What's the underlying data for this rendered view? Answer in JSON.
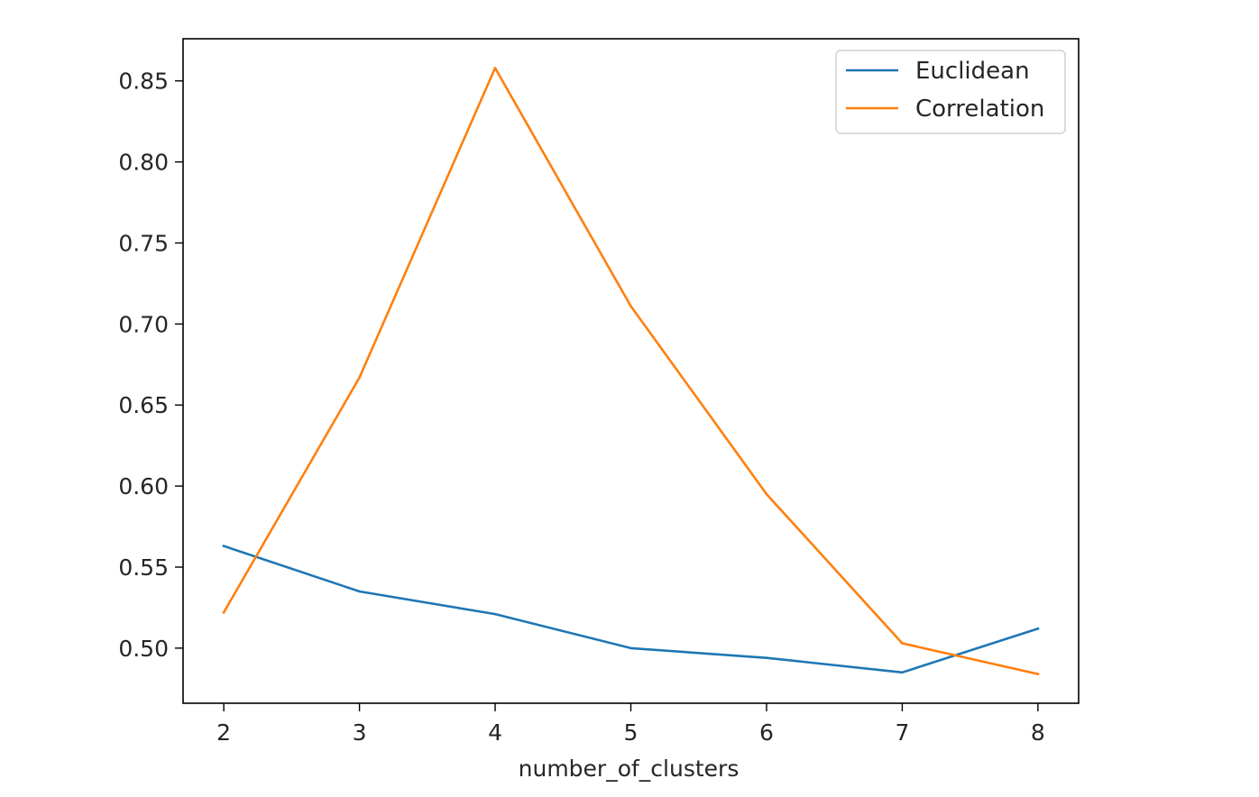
{
  "chart_data": {
    "type": "line",
    "title": "",
    "xlabel": "number_of_clusters",
    "ylabel": "",
    "x": [
      2,
      3,
      4,
      5,
      6,
      7,
      8
    ],
    "xticks": [
      "2",
      "3",
      "4",
      "5",
      "6",
      "7",
      "8"
    ],
    "yticks": [
      "0.50",
      "0.55",
      "0.60",
      "0.65",
      "0.70",
      "0.75",
      "0.80",
      "0.85"
    ],
    "ytick_values": [
      0.5,
      0.55,
      0.6,
      0.65,
      0.7,
      0.75,
      0.8,
      0.85
    ],
    "xlim": [
      1.7,
      8.3
    ],
    "ylim": [
      0.466,
      0.876
    ],
    "grid": false,
    "legend_position": "top-right",
    "series": [
      {
        "name": "Euclidean",
        "color": "#1f77b4",
        "values": [
          0.563,
          0.535,
          0.521,
          0.5,
          0.494,
          0.485,
          0.512
        ]
      },
      {
        "name": "Correlation",
        "color": "#ff7f0e",
        "values": [
          0.522,
          0.667,
          0.858,
          0.711,
          0.595,
          0.503,
          0.484
        ]
      }
    ]
  }
}
